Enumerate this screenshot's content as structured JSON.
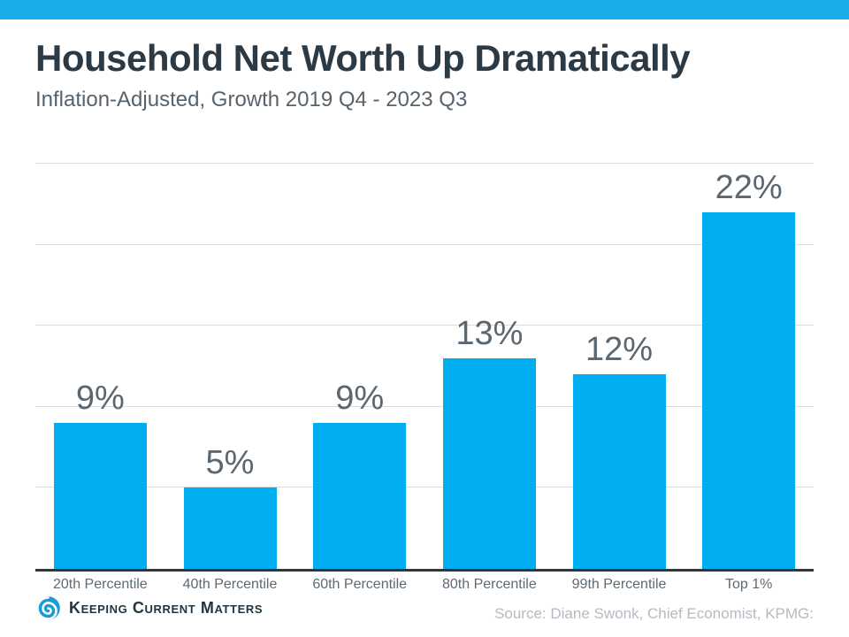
{
  "header": {
    "title": "Household Net Worth Up Dramatically",
    "subtitle": "Inflation-Adjusted, Growth 2019 Q4 - 2023 Q3"
  },
  "chart_data": {
    "type": "bar",
    "title": "Household Net Worth Up Dramatically",
    "subtitle": "Inflation-Adjusted, Growth 2019 Q4 - 2023 Q3",
    "categories": [
      "20th Percentile",
      "40th Percentile",
      "60th Percentile",
      "80th Percentile",
      "99th Percentile",
      "Top 1%"
    ],
    "values": [
      9,
      5,
      9,
      13,
      12,
      22
    ],
    "value_labels": [
      "9%",
      "5%",
      "9%",
      "13%",
      "12%",
      "22%"
    ],
    "xlabel": "",
    "ylabel": "",
    "ylim": [
      0,
      25
    ],
    "gridline_step": 5,
    "grid": true,
    "legend": "none",
    "bar_color": "#00AEEF"
  },
  "footer": {
    "logo_text": "Keeping Current Matters",
    "source": "Source: Diane Swonk, Chief Economist, KPMG:"
  },
  "colors": {
    "banner": "#18ACEA",
    "bar": "#00AEEF",
    "title": "#2C3A45",
    "subtitle": "#56626C",
    "value_label": "#5A6670",
    "axis_label": "#5E6971",
    "gridline": "#DADDDF",
    "axis_line": "#30363B",
    "source_text": "#B5BBC1",
    "logo_text": "#203441"
  }
}
